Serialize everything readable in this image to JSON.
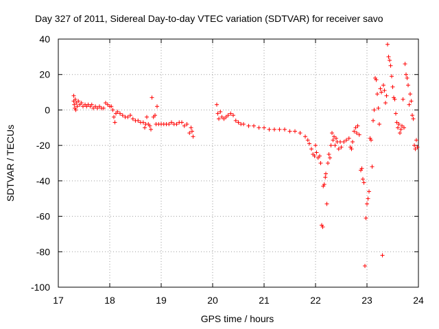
{
  "chart_data": {
    "type": "scatter",
    "title": "Day 327 of 2011, Sidereal Day-to-day VTEC variation (SDTVAR) for receiver savo",
    "xlabel": "GPS time / hours",
    "ylabel": "SDTVAR / TECUs",
    "xlim": [
      17,
      24
    ],
    "ylim": [
      -100,
      40
    ],
    "xticks": [
      17,
      18,
      19,
      20,
      21,
      22,
      23,
      24
    ],
    "yticks": [
      -100,
      -80,
      -60,
      -40,
      -20,
      0,
      20,
      40
    ],
    "xtick_labels": [
      "17",
      "18",
      "19",
      "20",
      "21",
      "22",
      "23",
      "24"
    ],
    "ytick_labels": [
      "-100",
      "-80",
      "-60",
      "-40",
      "-20",
      "0",
      "20",
      "40"
    ],
    "grid": true,
    "series": [
      {
        "name": "SDTVAR",
        "color": "#ff0000",
        "marker": "plus",
        "points": [
          [
            17.3,
            8
          ],
          [
            17.3,
            5
          ],
          [
            17.31,
            3
          ],
          [
            17.32,
            1
          ],
          [
            17.33,
            6
          ],
          [
            17.34,
            0
          ],
          [
            17.35,
            4
          ],
          [
            17.37,
            2
          ],
          [
            17.39,
            5
          ],
          [
            17.42,
            3
          ],
          [
            17.45,
            4
          ],
          [
            17.48,
            2
          ],
          [
            17.52,
            3
          ],
          [
            17.55,
            2
          ],
          [
            17.58,
            3
          ],
          [
            17.62,
            2
          ],
          [
            17.65,
            3
          ],
          [
            17.68,
            1
          ],
          [
            17.72,
            2
          ],
          [
            17.76,
            1
          ],
          [
            17.8,
            2
          ],
          [
            17.84,
            1
          ],
          [
            17.88,
            1
          ],
          [
            17.92,
            4
          ],
          [
            17.96,
            3
          ],
          [
            18.0,
            2
          ],
          [
            18.03,
            2
          ],
          [
            18.06,
            0
          ],
          [
            18.08,
            -4
          ],
          [
            18.1,
            -7
          ],
          [
            18.12,
            -2
          ],
          [
            18.15,
            -1
          ],
          [
            18.2,
            -2
          ],
          [
            18.25,
            -3
          ],
          [
            18.3,
            -4
          ],
          [
            18.35,
            -4
          ],
          [
            18.4,
            -3
          ],
          [
            18.45,
            -5
          ],
          [
            18.5,
            -6
          ],
          [
            18.55,
            -6
          ],
          [
            18.6,
            -7
          ],
          [
            18.65,
            -7
          ],
          [
            18.68,
            -10
          ],
          [
            18.7,
            -8
          ],
          [
            18.72,
            -4
          ],
          [
            18.75,
            -8
          ],
          [
            18.78,
            -9
          ],
          [
            18.8,
            -11
          ],
          [
            18.82,
            7
          ],
          [
            18.85,
            -4
          ],
          [
            18.88,
            -3
          ],
          [
            18.9,
            -8
          ],
          [
            18.92,
            2
          ],
          [
            18.95,
            -8
          ],
          [
            19.0,
            -8
          ],
          [
            19.05,
            -8
          ],
          [
            19.1,
            -8
          ],
          [
            19.15,
            -8
          ],
          [
            19.2,
            -7
          ],
          [
            19.25,
            -8
          ],
          [
            19.3,
            -8
          ],
          [
            19.35,
            -7
          ],
          [
            19.4,
            -7
          ],
          [
            19.45,
            -9
          ],
          [
            19.5,
            -8
          ],
          [
            19.55,
            -13
          ],
          [
            19.58,
            -10
          ],
          [
            19.6,
            -12
          ],
          [
            19.62,
            -15
          ],
          [
            20.08,
            3
          ],
          [
            20.1,
            -2
          ],
          [
            20.12,
            -5
          ],
          [
            20.15,
            -1
          ],
          [
            20.18,
            -4
          ],
          [
            20.22,
            -5
          ],
          [
            20.26,
            -4
          ],
          [
            20.3,
            -3
          ],
          [
            20.35,
            -2
          ],
          [
            20.4,
            -3
          ],
          [
            20.45,
            -6
          ],
          [
            20.5,
            -7
          ],
          [
            20.55,
            -8
          ],
          [
            20.6,
            -8
          ],
          [
            20.7,
            -9
          ],
          [
            20.8,
            -9
          ],
          [
            20.9,
            -10
          ],
          [
            21.0,
            -10
          ],
          [
            21.1,
            -11
          ],
          [
            21.2,
            -11
          ],
          [
            21.3,
            -11
          ],
          [
            21.4,
            -11
          ],
          [
            21.5,
            -12
          ],
          [
            21.6,
            -12
          ],
          [
            21.7,
            -13
          ],
          [
            21.8,
            -15
          ],
          [
            21.85,
            -17
          ],
          [
            21.88,
            -19
          ],
          [
            21.92,
            -22
          ],
          [
            21.95,
            -25
          ],
          [
            21.98,
            -26
          ],
          [
            22.0,
            -20
          ],
          [
            22.02,
            -24
          ],
          [
            22.05,
            -27
          ],
          [
            22.08,
            -26
          ],
          [
            22.1,
            -30
          ],
          [
            22.12,
            -65
          ],
          [
            22.14,
            -66
          ],
          [
            22.15,
            -43
          ],
          [
            22.17,
            -42
          ],
          [
            22.19,
            -38
          ],
          [
            22.2,
            -36
          ],
          [
            22.22,
            -53
          ],
          [
            22.24,
            -30
          ],
          [
            22.26,
            -25
          ],
          [
            22.28,
            -27
          ],
          [
            22.3,
            -20
          ],
          [
            22.32,
            -13
          ],
          [
            22.34,
            -17
          ],
          [
            22.36,
            -15
          ],
          [
            22.38,
            -20
          ],
          [
            22.4,
            -16
          ],
          [
            22.42,
            -18
          ],
          [
            22.45,
            -22
          ],
          [
            22.48,
            -18
          ],
          [
            22.5,
            -21
          ],
          [
            22.55,
            -18
          ],
          [
            22.6,
            -17
          ],
          [
            22.65,
            -16
          ],
          [
            22.68,
            -21
          ],
          [
            22.7,
            -22
          ],
          [
            22.72,
            -18
          ],
          [
            22.75,
            -12
          ],
          [
            22.78,
            -10
          ],
          [
            22.8,
            -13
          ],
          [
            22.82,
            -9
          ],
          [
            22.85,
            -14
          ],
          [
            22.88,
            -34
          ],
          [
            22.9,
            -33
          ],
          [
            22.92,
            -39
          ],
          [
            22.94,
            -41
          ],
          [
            22.96,
            -88
          ],
          [
            22.98,
            -61
          ],
          [
            23.0,
            -53
          ],
          [
            23.02,
            -50
          ],
          [
            23.04,
            -46
          ],
          [
            23.06,
            -16
          ],
          [
            23.08,
            -17
          ],
          [
            23.1,
            -32
          ],
          [
            23.12,
            -6
          ],
          [
            23.14,
            0
          ],
          [
            23.16,
            18
          ],
          [
            23.18,
            17
          ],
          [
            23.2,
            9
          ],
          [
            23.22,
            1
          ],
          [
            23.24,
            -8
          ],
          [
            23.26,
            12
          ],
          [
            23.28,
            10
          ],
          [
            23.3,
            -82
          ],
          [
            23.32,
            14
          ],
          [
            23.34,
            11
          ],
          [
            23.36,
            4
          ],
          [
            23.38,
            8
          ],
          [
            23.4,
            37
          ],
          [
            23.42,
            30
          ],
          [
            23.44,
            28
          ],
          [
            23.46,
            25
          ],
          [
            23.48,
            19
          ],
          [
            23.5,
            13
          ],
          [
            23.52,
            7
          ],
          [
            23.54,
            6
          ],
          [
            23.56,
            -2
          ],
          [
            23.58,
            -7
          ],
          [
            23.6,
            -10
          ],
          [
            23.62,
            -8
          ],
          [
            23.64,
            -13
          ],
          [
            23.66,
            -11
          ],
          [
            23.68,
            -9
          ],
          [
            23.7,
            6
          ],
          [
            23.72,
            -10
          ],
          [
            23.74,
            26
          ],
          [
            23.76,
            20
          ],
          [
            23.78,
            18
          ],
          [
            23.8,
            14
          ],
          [
            23.82,
            3
          ],
          [
            23.84,
            9
          ],
          [
            23.86,
            5
          ],
          [
            23.88,
            -3
          ],
          [
            23.9,
            -5
          ],
          [
            23.92,
            -20
          ],
          [
            23.94,
            -22
          ],
          [
            23.96,
            -17
          ],
          [
            23.98,
            -21
          ]
        ]
      }
    ]
  }
}
